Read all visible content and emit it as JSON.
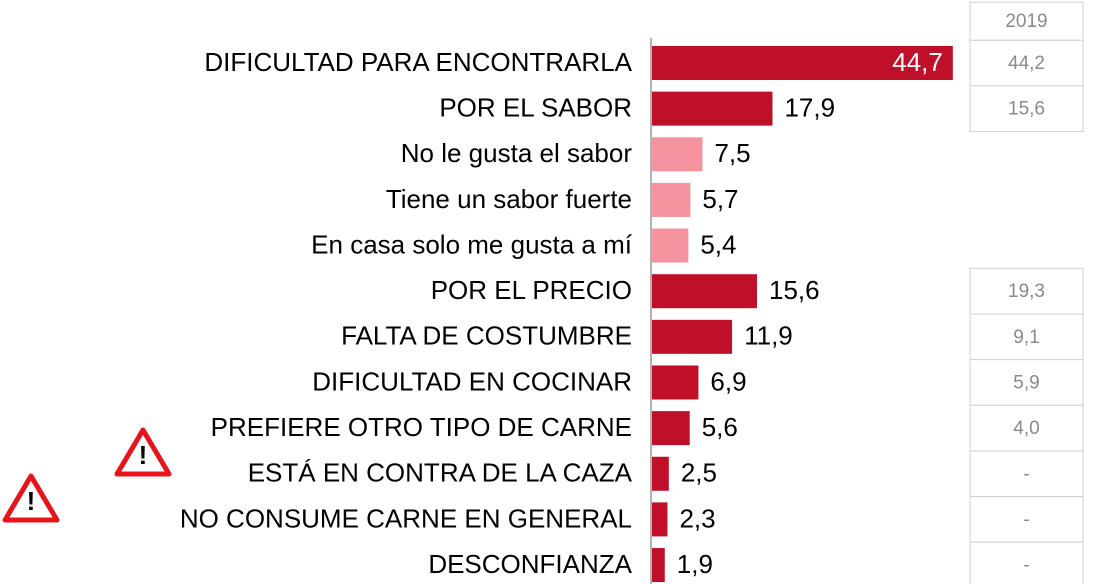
{
  "chart_data": {
    "type": "bar",
    "categories": [
      "DIFICULTAD PARA ENCONTRARLA",
      "POR EL SABOR",
      "No le gusta el sabor",
      "Tiene un sabor fuerte",
      "En casa solo me gusta a mí",
      "POR EL PRECIO",
      "FALTA DE COSTUMBRE",
      "DIFICULTAD EN COCINAR",
      "PREFIERE OTRO TIPO DE CARNE",
      "ESTÁ EN CONTRA DE LA CAZA",
      "NO CONSUME CARNE EN GENERAL",
      "DESCONFIANZA"
    ],
    "values": [
      44.7,
      17.9,
      7.5,
      5.7,
      5.4,
      15.6,
      11.9,
      6.9,
      5.6,
      2.5,
      2.3,
      1.9
    ],
    "value_labels": [
      "44,7",
      "17,9",
      "7,5",
      "5,7",
      "5,4",
      "15,6",
      "11,9",
      "6,9",
      "5,6",
      "2,5",
      "2,3",
      "1,9"
    ],
    "colors": [
      "#c00f28",
      "#c00f28",
      "#f4939d",
      "#f4939d",
      "#f4939d",
      "#c00f28",
      "#c00f28",
      "#c00f28",
      "#c00f28",
      "#c00f28",
      "#c00f28",
      "#c00f28"
    ],
    "comparison": {
      "name": "2019",
      "values": [
        44.2,
        15.6,
        null,
        null,
        null,
        19.3,
        9.1,
        5.9,
        4.0,
        null,
        null,
        null
      ],
      "value_labels": [
        "44,2",
        "15,6",
        null,
        null,
        null,
        "19,3",
        "9,1",
        "5,9",
        "4,0",
        "-",
        "-",
        "-"
      ]
    }
  }
}
